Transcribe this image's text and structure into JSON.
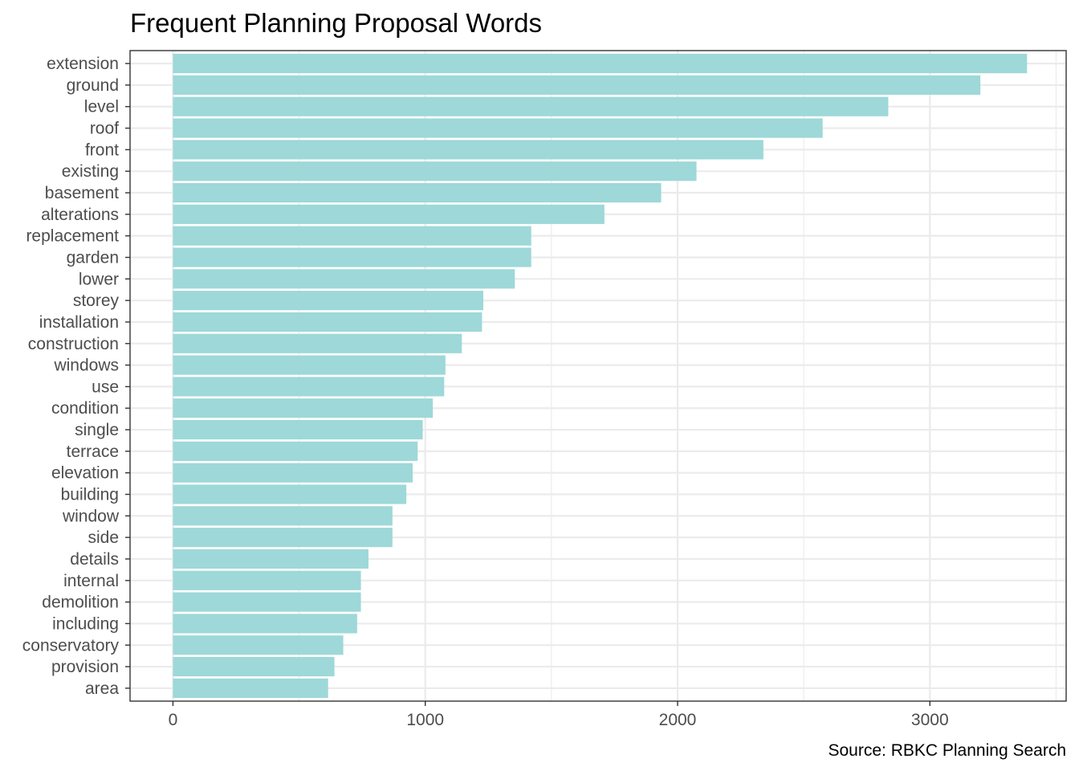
{
  "chart_data": {
    "type": "bar",
    "orientation": "horizontal",
    "title": "Frequent Planning Proposal Words",
    "caption": "Source: RBKC Planning Search",
    "xlabel": "",
    "ylabel": "",
    "xlim": [
      -170,
      3540
    ],
    "x_ticks": [
      0,
      1000,
      2000,
      3000
    ],
    "x_tick_labels": [
      "0",
      "1000",
      "2000",
      "3000"
    ],
    "grid": true,
    "theme": "bw",
    "bar_color": "#9ed8d8",
    "categories": [
      "extension",
      "ground",
      "level",
      "roof",
      "front",
      "existing",
      "basement",
      "alterations",
      "replacement",
      "garden",
      "lower",
      "storey",
      "installation",
      "construction",
      "windows",
      "use",
      "condition",
      "single",
      "terrace",
      "elevation",
      "building",
      "window",
      "side",
      "details",
      "internal",
      "demolition",
      "including",
      "conservatory",
      "provision",
      "area"
    ],
    "values": [
      3385,
      3200,
      2835,
      2575,
      2340,
      2075,
      1935,
      1710,
      1420,
      1420,
      1355,
      1230,
      1225,
      1145,
      1080,
      1075,
      1030,
      990,
      970,
      950,
      925,
      870,
      870,
      775,
      745,
      745,
      730,
      675,
      640,
      615
    ]
  }
}
